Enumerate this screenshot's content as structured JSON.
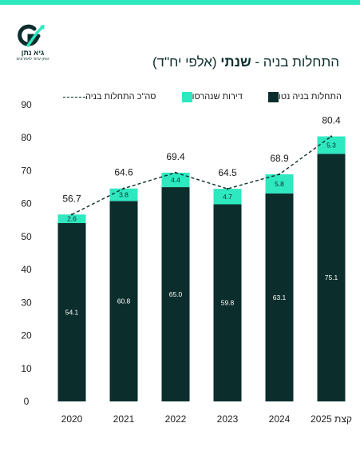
{
  "brand": {
    "name": "גיא נתן",
    "tagline": "הגיון עיוור לאחרונים",
    "colors": {
      "dark": "#0b2e2c",
      "accent": "#2ee8c0",
      "line": "#0b2e2c"
    }
  },
  "title": {
    "prefix": "התחלות בניה - ",
    "emphasis": "שנתי",
    "suffix": " (אלפי יח\"ד)"
  },
  "legend": {
    "net_starts": "התחלות בניה נטו",
    "demolished": "דירות שנהרסו",
    "total": "סה\"כ התחלות בניה"
  },
  "chart_data": {
    "type": "bar",
    "stacked": true,
    "categories": [
      "2020",
      "2021",
      "2022",
      "2023",
      "2024",
      "קצת 2025"
    ],
    "series": [
      {
        "name": "התחלות בניה נטו",
        "values": [
          54.1,
          60.8,
          65.0,
          59.8,
          63.1,
          75.1
        ],
        "color": "#0b2e2c"
      },
      {
        "name": "דירות שנהרסו",
        "values": [
          2.6,
          3.8,
          4.4,
          4.7,
          5.8,
          5.3
        ],
        "color": "#2ee8c0"
      },
      {
        "name": "סה\"כ התחלות בניה",
        "type": "line",
        "dashed": true,
        "values": [
          56.7,
          64.6,
          69.4,
          64.5,
          68.9,
          80.4
        ],
        "color": "#0b2e2c"
      }
    ],
    "total_labels": [
      "56.7",
      "64.6",
      "69.4",
      "64.5",
      "68.9",
      "80.4"
    ],
    "net_labels": [
      "54.1",
      "60.8",
      "65.0",
      "59.8",
      "63.1",
      "75.1"
    ],
    "demolished_labels": [
      "2.6",
      "3.8",
      "4.4",
      "4.7",
      "5.8",
      "5.3"
    ],
    "y_ticks": [
      "0",
      "10",
      "20",
      "30",
      "40",
      "50",
      "60",
      "70",
      "80",
      "90"
    ],
    "ylim": [
      0,
      90
    ],
    "grid": false,
    "legend_position": "top"
  }
}
